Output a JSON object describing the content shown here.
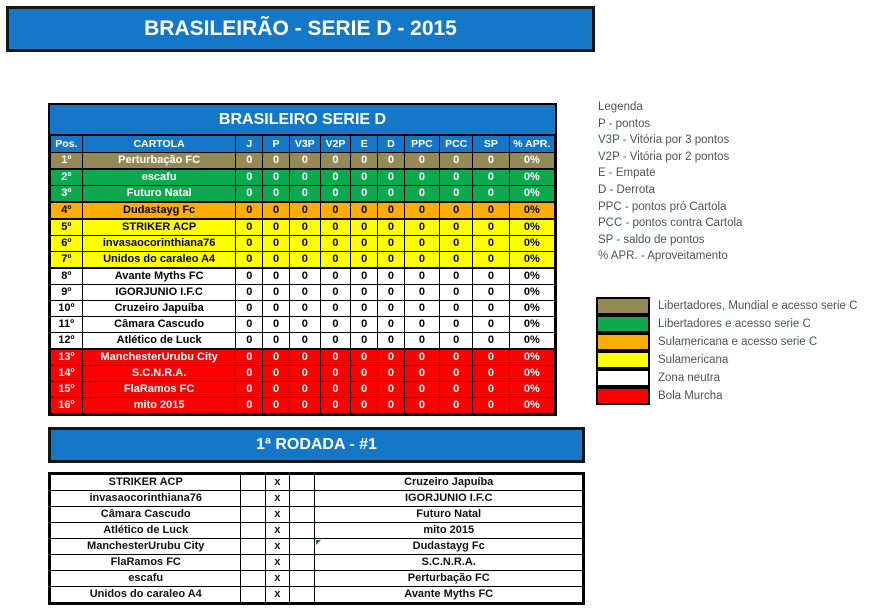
{
  "title_banner": "BRASILEIRÃO - SERIE D - 2015",
  "colors": {
    "accent_blue": "#1577C8",
    "border_black": "#000000",
    "legend_text": "#4a5551",
    "comment_marker_green": "#1e7145"
  },
  "zone_colors": {
    "olive": {
      "bg": "#948A54",
      "text": "#FFFFFF"
    },
    "green": {
      "bg": "#0CA94F",
      "text": "#FFFFFF"
    },
    "orange": {
      "bg": "#FFAD00",
      "text": "#000000"
    },
    "yellow": {
      "bg": "#FFFF00",
      "text": "#000000"
    },
    "white": {
      "bg": "#FFFFFF",
      "text": "#000000"
    },
    "red": {
      "bg": "#FF0000",
      "text": "#FFFFFF"
    }
  },
  "standings": {
    "title": "BRASILEIRO SERIE D",
    "columns": [
      "Pos.",
      "CARTOLA",
      "J",
      "P",
      "V3P",
      "V2P",
      "E",
      "D",
      "PPC",
      "PCC",
      "SP",
      "% APR."
    ],
    "rows": [
      {
        "pos": "1º",
        "team": "Perturbação FC",
        "values": [
          "0",
          "0",
          "0",
          "0",
          "0",
          "0",
          "0",
          "0",
          "0"
        ],
        "apr": "0%",
        "zone": "olive"
      },
      {
        "pos": "2º",
        "team": "escafu",
        "values": [
          "0",
          "0",
          "0",
          "0",
          "0",
          "0",
          "0",
          "0",
          "0"
        ],
        "apr": "0%",
        "zone": "green"
      },
      {
        "pos": "3º",
        "team": "Futuro Natal",
        "values": [
          "0",
          "0",
          "0",
          "0",
          "0",
          "0",
          "0",
          "0",
          "0"
        ],
        "apr": "0%",
        "zone": "green"
      },
      {
        "pos": "4º",
        "team": "Dudastayg Fc",
        "values": [
          "0",
          "0",
          "0",
          "0",
          "0",
          "0",
          "0",
          "0",
          "0"
        ],
        "apr": "0%",
        "zone": "orange"
      },
      {
        "pos": "5º",
        "team": "STRIKER ACP",
        "values": [
          "0",
          "0",
          "0",
          "0",
          "0",
          "0",
          "0",
          "0",
          "0"
        ],
        "apr": "0%",
        "zone": "yellow"
      },
      {
        "pos": "6º",
        "team": "invasaocorinthiana76",
        "values": [
          "0",
          "0",
          "0",
          "0",
          "0",
          "0",
          "0",
          "0",
          "0"
        ],
        "apr": "0%",
        "zone": "yellow"
      },
      {
        "pos": "7º",
        "team": "Unidos do caraleo A4",
        "values": [
          "0",
          "0",
          "0",
          "0",
          "0",
          "0",
          "0",
          "0",
          "0"
        ],
        "apr": "0%",
        "zone": "yellow"
      },
      {
        "pos": "8º",
        "team": "Avante Myths FC",
        "values": [
          "0",
          "0",
          "0",
          "0",
          "0",
          "0",
          "0",
          "0",
          "0"
        ],
        "apr": "0%",
        "zone": "white"
      },
      {
        "pos": "9º",
        "team": "IGORJUNIO I.F.C",
        "values": [
          "0",
          "0",
          "0",
          "0",
          "0",
          "0",
          "0",
          "0",
          "0"
        ],
        "apr": "0%",
        "zone": "white"
      },
      {
        "pos": "10º",
        "team": "Cruzeiro Japuíba",
        "values": [
          "0",
          "0",
          "0",
          "0",
          "0",
          "0",
          "0",
          "0",
          "0"
        ],
        "apr": "0%",
        "zone": "white"
      },
      {
        "pos": "11º",
        "team": "Câmara Cascudo",
        "values": [
          "0",
          "0",
          "0",
          "0",
          "0",
          "0",
          "0",
          "0",
          "0"
        ],
        "apr": "0%",
        "zone": "white"
      },
      {
        "pos": "12º",
        "team": "Atlético de Luck",
        "values": [
          "0",
          "0",
          "0",
          "0",
          "0",
          "0",
          "0",
          "0",
          "0"
        ],
        "apr": "0%",
        "zone": "white"
      },
      {
        "pos": "13º",
        "team": "ManchesterUrubu City",
        "values": [
          "0",
          "0",
          "0",
          "0",
          "0",
          "0",
          "0",
          "0",
          "0"
        ],
        "apr": "0%",
        "zone": "red"
      },
      {
        "pos": "14º",
        "team": "S.C.N.R.A.",
        "values": [
          "0",
          "0",
          "0",
          "0",
          "0",
          "0",
          "0",
          "0",
          "0"
        ],
        "apr": "0%",
        "zone": "red"
      },
      {
        "pos": "15º",
        "team": "FlaRamos FC",
        "values": [
          "0",
          "0",
          "0",
          "0",
          "0",
          "0",
          "0",
          "0",
          "0"
        ],
        "apr": "0%",
        "zone": "red"
      },
      {
        "pos": "16º",
        "team": "mito 2015",
        "values": [
          "0",
          "0",
          "0",
          "0",
          "0",
          "0",
          "0",
          "0",
          "0"
        ],
        "apr": "0%",
        "zone": "red"
      }
    ]
  },
  "legend": {
    "heading": "Legenda",
    "items": [
      "P - pontos",
      "V3P - Vitória por 3 pontos",
      "V2P - Vitória por 2 pontos",
      "E - Empate",
      "D - Derrota",
      "PPC - pontos pró Cartola",
      "PCC - pontos contra Cartola",
      "SP - saldo de pontos",
      "% APR. - Aproveitamento"
    ]
  },
  "zones": [
    {
      "zone": "olive",
      "label": "Libertadores, Mundial e acesso serie C"
    },
    {
      "zone": "green",
      "label": "Libertadores e acesso serie C"
    },
    {
      "zone": "orange",
      "label": "Sulamericana e acesso serie C"
    },
    {
      "zone": "yellow",
      "label": "Sulamericana"
    },
    {
      "zone": "white",
      "label": "Zona neutra"
    },
    {
      "zone": "red",
      "label": "Bola Murcha"
    }
  ],
  "round": {
    "title": "1ª RODADA - #1",
    "separator": "x",
    "matches": [
      {
        "home": "STRIKER ACP",
        "away": "Cruzeiro Japuíba",
        "note": false
      },
      {
        "home": "invasaocorinthiana76",
        "away": "IGORJUNIO I.F.C",
        "note": false
      },
      {
        "home": "Câmara Cascudo",
        "away": "Futuro Natal",
        "note": false
      },
      {
        "home": "Atlético de Luck",
        "away": "mito 2015",
        "note": false
      },
      {
        "home": "ManchesterUrubu City",
        "away": "Dudastayg Fc",
        "note": true
      },
      {
        "home": "FlaRamos FC",
        "away": "S.C.N.R.A.",
        "note": false
      },
      {
        "home": "escafu",
        "away": "Perturbação FC",
        "note": false
      },
      {
        "home": "Unidos do caraleo A4",
        "away": "Avante Myths FC",
        "note": false
      }
    ]
  }
}
